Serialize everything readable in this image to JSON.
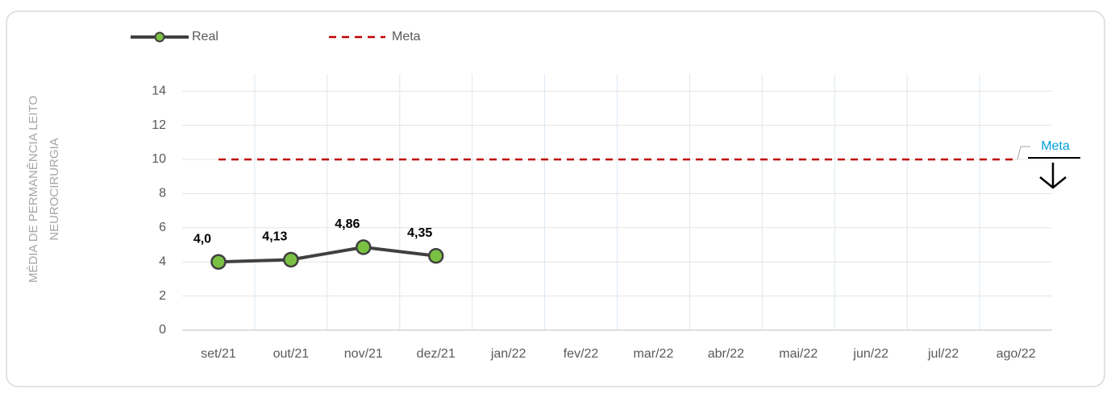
{
  "chart_data": {
    "type": "line",
    "y_label": [
      "MÉDIA DE PERMANÊNCIA LEITO",
      "NEUROCIRURGIA"
    ],
    "categories": [
      "set/21",
      "out/21",
      "nov/21",
      "dez/21",
      "jan/22",
      "fev/22",
      "mar/22",
      "abr/22",
      "mai/22",
      "jun/22",
      "jul/22",
      "ago/22"
    ],
    "series": [
      {
        "name": "Real",
        "color": "#404040",
        "marker_color": "#7ac143",
        "values": [
          4.0,
          4.13,
          4.86,
          4.35,
          null,
          null,
          null,
          null,
          null,
          null,
          null,
          null
        ],
        "value_labels": [
          "4,0",
          "4,13",
          "4,86",
          "4,35",
          null,
          null,
          null,
          null,
          null,
          null,
          null,
          null
        ]
      },
      {
        "name": "Meta",
        "color": "#c00000",
        "dashed": true,
        "values": [
          10,
          10,
          10,
          10,
          10,
          10,
          10,
          10,
          10,
          10,
          10,
          10
        ]
      }
    ],
    "annotation": "Meta",
    "ylim": [
      0,
      15
    ],
    "yticks": [
      0,
      2,
      4,
      6,
      8,
      10,
      12,
      14
    ],
    "grid": true,
    "legend": "top-left"
  }
}
